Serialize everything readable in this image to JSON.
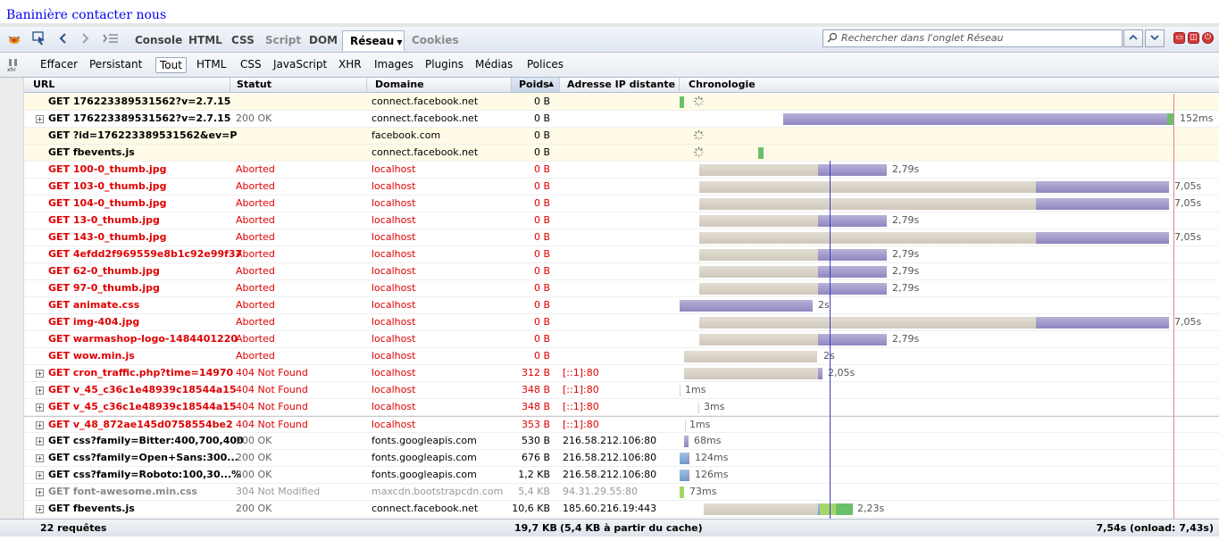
{
  "page": {
    "link_text": "Baninière contacter nous"
  },
  "toolbar": {
    "tabs": [
      "Console",
      "HTML",
      "CSS",
      "Script",
      "DOM",
      "Réseau",
      "Cookies"
    ],
    "active_tab": "Réseau",
    "search_placeholder": "Rechercher dans l'onglet Réseau"
  },
  "filters": {
    "clear_label": "Effacer",
    "persist_label": "Persistant",
    "items": [
      "Tout",
      "HTML",
      "CSS",
      "JavaScript",
      "XHR",
      "Images",
      "Plugins",
      "Médias",
      "Polices"
    ],
    "active": "Tout"
  },
  "columns": {
    "url": "URL",
    "status": "Statut",
    "domain": "Domaine",
    "size": "Poids",
    "ip": "Adresse IP distante",
    "timeline": "Chronologie"
  },
  "requests": [
    {
      "url": "GET 176223389531562?v=2.7.15",
      "status": "",
      "domain": "connect.facebook.net",
      "size": "0 B",
      "ip": "",
      "time": "",
      "kind": "pending",
      "expandable": false
    },
    {
      "url": "GET 176223389531562?v=2.7.15",
      "status": "200 OK",
      "domain": "connect.facebook.net",
      "size": "0 B",
      "ip": "",
      "time": "152ms",
      "kind": "ok",
      "expandable": true
    },
    {
      "url": "GET ?id=176223389531562&ev=P",
      "status": "",
      "domain": "facebook.com",
      "size": "0 B",
      "ip": "",
      "time": "",
      "kind": "pending",
      "expandable": false
    },
    {
      "url": "GET fbevents.js",
      "status": "",
      "domain": "connect.facebook.net",
      "size": "0 B",
      "ip": "",
      "time": "",
      "kind": "pending",
      "expandable": false
    },
    {
      "url": "GET 100-0_thumb.jpg",
      "status": "Aborted",
      "domain": "localhost",
      "size": "0 B",
      "ip": "",
      "time": "2,79s",
      "kind": "err",
      "expandable": false
    },
    {
      "url": "GET 103-0_thumb.jpg",
      "status": "Aborted",
      "domain": "localhost",
      "size": "0 B",
      "ip": "",
      "time": "7,05s",
      "kind": "err",
      "expandable": false
    },
    {
      "url": "GET 104-0_thumb.jpg",
      "status": "Aborted",
      "domain": "localhost",
      "size": "0 B",
      "ip": "",
      "time": "7,05s",
      "kind": "err",
      "expandable": false
    },
    {
      "url": "GET 13-0_thumb.jpg",
      "status": "Aborted",
      "domain": "localhost",
      "size": "0 B",
      "ip": "",
      "time": "2,79s",
      "kind": "err",
      "expandable": false
    },
    {
      "url": "GET 143-0_thumb.jpg",
      "status": "Aborted",
      "domain": "localhost",
      "size": "0 B",
      "ip": "",
      "time": "7,05s",
      "kind": "err",
      "expandable": false
    },
    {
      "url": "GET 4efdd2f969559e8b1c92e99f37",
      "status": "Aborted",
      "domain": "localhost",
      "size": "0 B",
      "ip": "",
      "time": "2,79s",
      "kind": "err",
      "expandable": false
    },
    {
      "url": "GET 62-0_thumb.jpg",
      "status": "Aborted",
      "domain": "localhost",
      "size": "0 B",
      "ip": "",
      "time": "2,79s",
      "kind": "err",
      "expandable": false
    },
    {
      "url": "GET 97-0_thumb.jpg",
      "status": "Aborted",
      "domain": "localhost",
      "size": "0 B",
      "ip": "",
      "time": "2,79s",
      "kind": "err",
      "expandable": false
    },
    {
      "url": "GET animate.css",
      "status": "Aborted",
      "domain": "localhost",
      "size": "0 B",
      "ip": "",
      "time": "2s",
      "kind": "err",
      "expandable": false
    },
    {
      "url": "GET img-404.jpg",
      "status": "Aborted",
      "domain": "localhost",
      "size": "0 B",
      "ip": "",
      "time": "7,05s",
      "kind": "err",
      "expandable": false
    },
    {
      "url": "GET warmashop-logo-1484401220",
      "status": "Aborted",
      "domain": "localhost",
      "size": "0 B",
      "ip": "",
      "time": "2,79s",
      "kind": "err",
      "expandable": false
    },
    {
      "url": "GET wow.min.js",
      "status": "Aborted",
      "domain": "localhost",
      "size": "0 B",
      "ip": "",
      "time": "2s",
      "kind": "err",
      "expandable": false
    },
    {
      "url": "GET cron_traffic.php?time=14970",
      "status": "404 Not Found",
      "domain": "localhost",
      "size": "312 B",
      "ip": "[::1]:80",
      "time": "2,05s",
      "kind": "err",
      "expandable": true
    },
    {
      "url": "GET v_45_c36c1e48939c18544a15",
      "status": "404 Not Found",
      "domain": "localhost",
      "size": "348 B",
      "ip": "[::1]:80",
      "time": "1ms",
      "kind": "err",
      "expandable": true
    },
    {
      "url": "GET v_45_c36c1e48939c18544a15",
      "status": "404 Not Found",
      "domain": "localhost",
      "size": "348 B",
      "ip": "[::1]:80",
      "time": "3ms",
      "kind": "err",
      "expandable": true
    },
    {
      "url": "GET v_48_872ae145d0758554be2",
      "status": "404 Not Found",
      "domain": "localhost",
      "size": "353 B",
      "ip": "[::1]:80",
      "time": "1ms",
      "kind": "err",
      "expandable": true
    },
    {
      "url": "GET css?family=Bitter:400,700,400",
      "status": "200 OK",
      "domain": "fonts.googleapis.com",
      "size": "530 B",
      "ip": "216.58.212.106:80",
      "time": "68ms",
      "kind": "ok",
      "expandable": true
    },
    {
      "url": "GET css?family=Open+Sans:300...",
      "status": "200 OK",
      "domain": "fonts.googleapis.com",
      "size": "676 B",
      "ip": "216.58.212.106:80",
      "time": "124ms",
      "kind": "ok",
      "expandable": true
    },
    {
      "url": "GET css?family=Roboto:100,30...%",
      "status": "200 OK",
      "domain": "fonts.googleapis.com",
      "size": "1,2 KB",
      "ip": "216.58.212.106:80",
      "time": "126ms",
      "kind": "ok",
      "expandable": true
    },
    {
      "url": "GET font-awesome.min.css",
      "status": "304 Not Modified",
      "domain": "maxcdn.bootstrapcdn.com",
      "size": "5,4 KB",
      "ip": "94.31.29.55:80",
      "time": "73ms",
      "kind": "nm",
      "expandable": true
    },
    {
      "url": "GET fbevents.js",
      "status": "200 OK",
      "domain": "connect.facebook.net",
      "size": "10,6 KB",
      "ip": "185.60.216.19:443",
      "time": "2,23s",
      "kind": "ok",
      "expandable": true
    }
  ],
  "footer": {
    "count": "22 requêtes",
    "total_size": "19,7 KB",
    "cache": "(5,4 KB à partir du cache)",
    "total_time": "7,54s (onload: 7,43s)"
  },
  "colors": {
    "error": "#e00000",
    "accent": "#2b4e8c",
    "receive_bar": "#8f86bf",
    "wait_bar": "#cfc8bb"
  }
}
